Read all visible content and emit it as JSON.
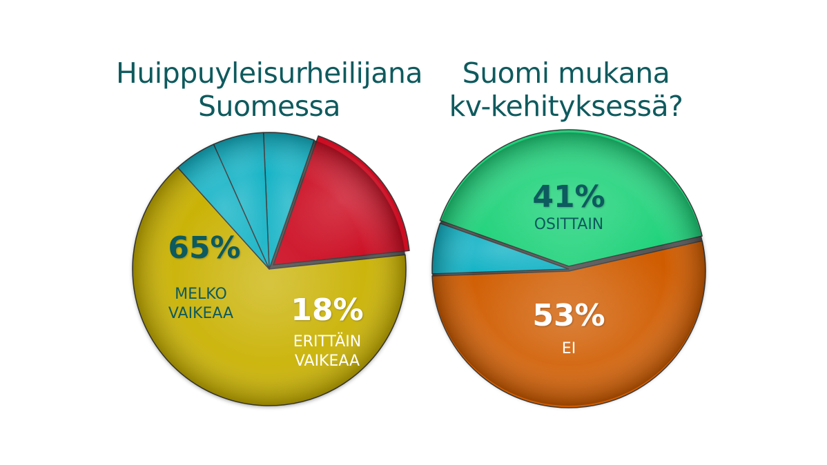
{
  "chart_data": [
    {
      "type": "pie",
      "title": [
        "Huippuyleisurheilijana",
        "Suomessa"
      ],
      "slices": [
        {
          "value": 65,
          "label": "65%",
          "sub": [
            "MELKO",
            "VAIKEAA"
          ],
          "color": "#c9b100"
        },
        {
          "value": 18,
          "label": "18%",
          "sub": [
            "ERITTÄIN",
            "VAIKEAA"
          ],
          "color": "#cc0d22"
        },
        {
          "value": 6,
          "label": "",
          "sub": [],
          "color": "#14b3c6"
        },
        {
          "value": 6,
          "label": "",
          "sub": [],
          "color": "#14b3c6"
        },
        {
          "value": 5,
          "label": "",
          "sub": [],
          "color": "#14b3c6"
        }
      ],
      "label_colors": {
        "percent": "#0e5a5e",
        "sub": "#0e5a5e",
        "percent_on_dark": "#ffffff",
        "sub_on_dark": "#ffffff"
      }
    },
    {
      "type": "pie",
      "title": [
        "Suomi mukana",
        "kv-kehityksessä?"
      ],
      "slices": [
        {
          "value": 53,
          "label": "53%",
          "sub": [
            "EI"
          ],
          "color": "#d05c00"
        },
        {
          "value": 41,
          "label": "41%",
          "sub": [
            "OSITTAIN"
          ],
          "color": "#1fd27a"
        },
        {
          "value": 6,
          "label": "",
          "sub": [],
          "color": "#14b3c6"
        }
      ],
      "label_colors": {
        "percent": "#0e5a5e",
        "sub": "#0e5a5e",
        "percent_on_dark": "#ffffff",
        "sub_on_dark": "#ffffff"
      }
    }
  ]
}
